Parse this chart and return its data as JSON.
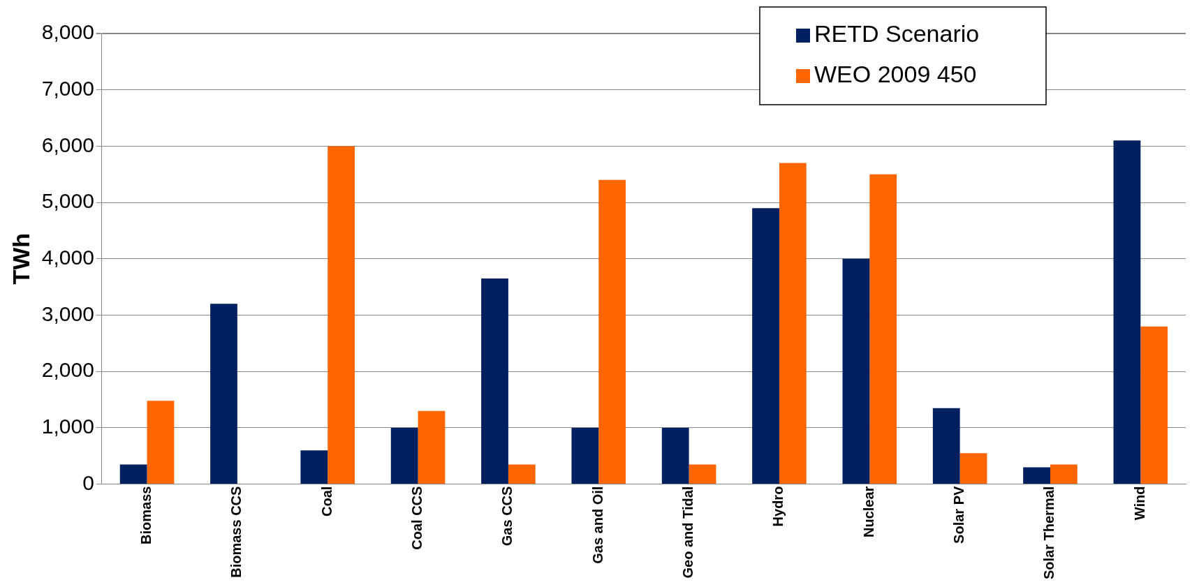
{
  "chart_data": {
    "type": "bar",
    "ylabel": "TWh",
    "categories": [
      "Biomass",
      "Biomass CCS",
      "Coal",
      "Coal CCS",
      "Gas CCS",
      "Gas and Oil",
      "Geo and Tidal",
      "Hydro",
      "Nuclear",
      "Solar PV",
      "Solar Thermal",
      "Wind"
    ],
    "series": [
      {
        "name": "RETD Scenario",
        "color": "#002060",
        "values": [
          350,
          3200,
          600,
          1000,
          3650,
          1000,
          1000,
          4900,
          4000,
          1350,
          300,
          6100
        ]
      },
      {
        "name": "WEO 2009 450",
        "color": "#ff6600",
        "values": [
          1480,
          0,
          6000,
          1300,
          350,
          5400,
          350,
          5700,
          5500,
          550,
          350,
          2800
        ]
      }
    ],
    "ylim": [
      0,
      8000
    ],
    "yticks": [
      {
        "value": 0,
        "label": "0"
      },
      {
        "value": 1000,
        "label": "1,000"
      },
      {
        "value": 2000,
        "label": "2,000"
      },
      {
        "value": 3000,
        "label": "3,000"
      },
      {
        "value": 4000,
        "label": "4,000"
      },
      {
        "value": 5000,
        "label": "5,000"
      },
      {
        "value": 6000,
        "label": "6,000"
      },
      {
        "value": 7000,
        "label": "7,000"
      },
      {
        "value": 8000,
        "label": "8,000"
      }
    ],
    "grid": "y",
    "legend": "top right"
  }
}
